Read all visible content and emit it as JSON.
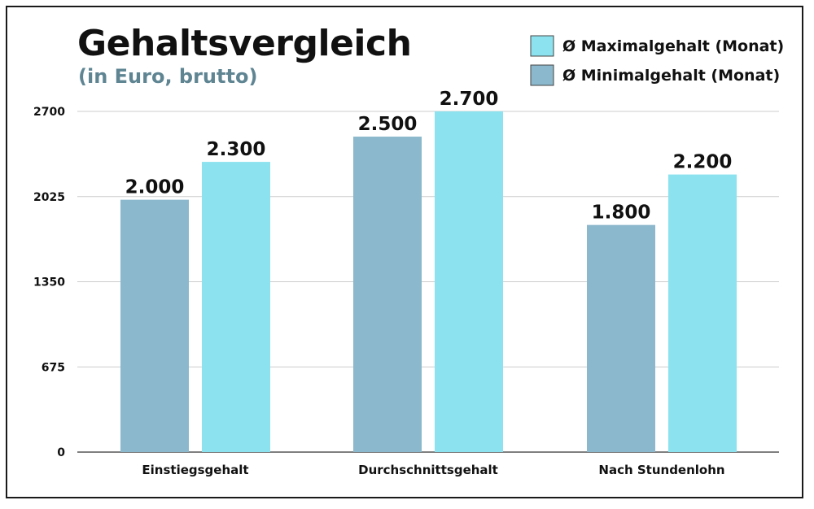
{
  "chart_data": {
    "type": "bar",
    "title": "Gehaltsvergleich",
    "subtitle": "(in Euro, brutto)",
    "categories": [
      "Einstiegsgehalt",
      "Durchschnittsgehalt",
      "Nach Stundenlohn"
    ],
    "series": [
      {
        "name": "Ø Minimalgehalt (Monat)",
        "values": [
          2000,
          2500,
          1800
        ],
        "labels": [
          "2.000",
          "2.500",
          "1.800"
        ],
        "color": "#8bb8cc"
      },
      {
        "name": "Ø Maximalgehalt (Monat)",
        "values": [
          2300,
          2700,
          2200
        ],
        "labels": [
          "2.300",
          "2.700",
          "2.200"
        ],
        "color": "#8ce3ef"
      }
    ],
    "yticks": [
      0,
      675,
      1350,
      2025,
      2700
    ],
    "ytick_labels": [
      "0",
      "675",
      "1350",
      "2025",
      "2700"
    ],
    "ylim": [
      0,
      2700
    ],
    "xlabel": "",
    "ylabel": "",
    "grid": true,
    "legend_placement": "top-right",
    "legend_order": [
      1,
      0
    ]
  },
  "colors": {
    "subtitle": "#5f8593",
    "grid": "#cccccc",
    "axis": "#333333",
    "border": "#1a1a1a"
  }
}
